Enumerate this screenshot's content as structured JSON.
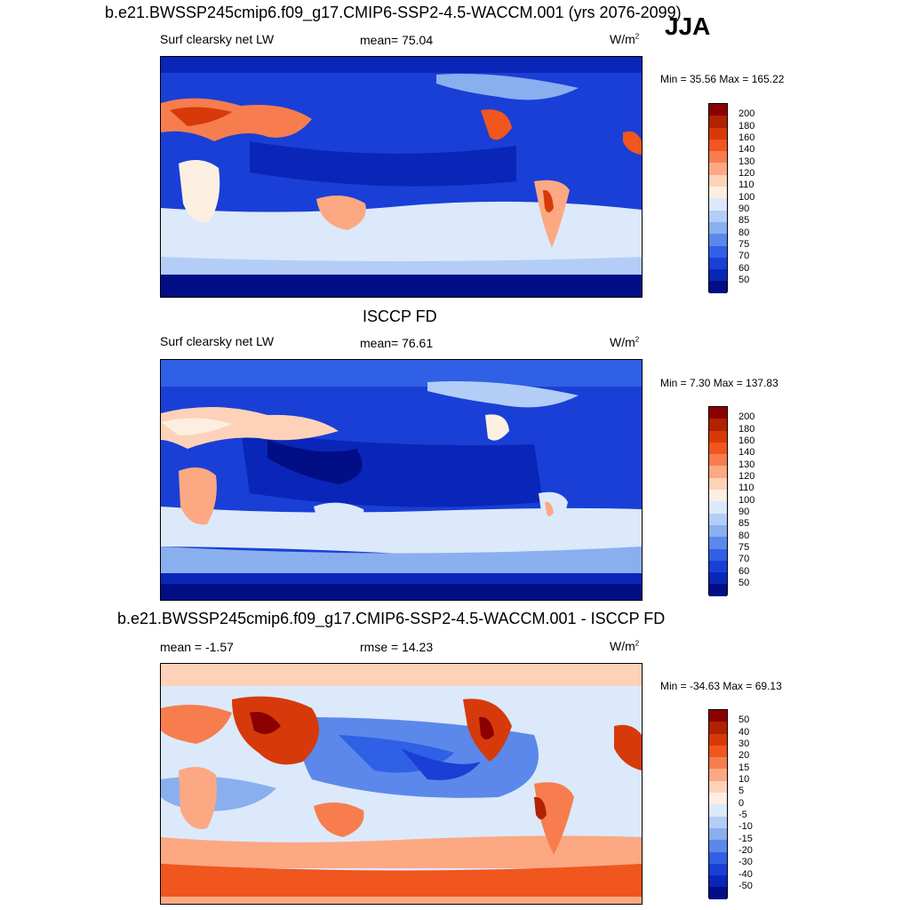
{
  "season": "JJA",
  "panels": [
    {
      "title": "b.e21.BWSSP245cmip6.f09_g17.CMIP6-SSP2-4.5-WACCM.001 (yrs 2076-2099)",
      "left_label": "Surf clearsky net LW",
      "center_label": "mean=  75.04",
      "units": "W/m",
      "units_sup": "2",
      "minmax": "Min =  35.56 Max = 165.22"
    },
    {
      "title": "ISCCP FD",
      "left_label": "Surf clearsky net LW",
      "center_label": "mean=  76.61",
      "units": "W/m",
      "units_sup": "2",
      "minmax": "Min =   7.30 Max = 137.83"
    },
    {
      "title": "b.e21.BWSSP245cmip6.f09_g17.CMIP6-SSP2-4.5-WACCM.001 - ISCCP FD",
      "left_label": "mean =  -1.57",
      "center_label": "rmse =  14.23",
      "units": "W/m",
      "units_sup": "2",
      "minmax": "Min = -34.63 Max =  69.13"
    }
  ],
  "colorbars": [
    {
      "levels": [
        "200",
        "180",
        "160",
        "140",
        "130",
        "120",
        "110",
        "100",
        "90",
        "85",
        "80",
        "75",
        "70",
        "60",
        "50"
      ],
      "colors": [
        "#8b0000",
        "#b22200",
        "#d63a0a",
        "#f0561e",
        "#f77d4e",
        "#fca883",
        "#fdd2b8",
        "#fcefe2",
        "#dce9fb",
        "#b3cdf7",
        "#8aafef",
        "#5b88ea",
        "#3060e6",
        "#1a3fd6",
        "#0a26b8",
        "#020e86"
      ]
    },
    {
      "levels": [
        "200",
        "180",
        "160",
        "140",
        "130",
        "120",
        "110",
        "100",
        "90",
        "85",
        "80",
        "75",
        "70",
        "60",
        "50"
      ],
      "colors": [
        "#8b0000",
        "#b22200",
        "#d63a0a",
        "#f0561e",
        "#f77d4e",
        "#fca883",
        "#fdd2b8",
        "#fcefe2",
        "#dce9fb",
        "#b3cdf7",
        "#8aafef",
        "#5b88ea",
        "#3060e6",
        "#1a3fd6",
        "#0a26b8",
        "#020e86"
      ]
    },
    {
      "levels": [
        "50",
        "40",
        "30",
        "20",
        "15",
        "10",
        "5",
        "0",
        "-5",
        "-10",
        "-15",
        "-20",
        "-30",
        "-40",
        "-50"
      ],
      "colors": [
        "#8b0000",
        "#b22200",
        "#d63a0a",
        "#f0561e",
        "#f77d4e",
        "#fca883",
        "#fdd2b8",
        "#fcefe2",
        "#dce9fb",
        "#b3cdf7",
        "#8aafef",
        "#5b88ea",
        "#3060e6",
        "#1a3fd6",
        "#0a26b8",
        "#020e86"
      ]
    }
  ],
  "chart_data": [
    {
      "type": "heatmap",
      "title": "b.e21.BWSSP245cmip6.f09_g17.CMIP6-SSP2-4.5-WACCM.001 (yrs 2076-2099)",
      "variable": "Surf clearsky net LW",
      "units": "W/m2",
      "mean": 75.04,
      "min": 35.56,
      "max": 165.22,
      "contour_levels": [
        50,
        60,
        70,
        75,
        80,
        85,
        90,
        100,
        110,
        120,
        130,
        140,
        160,
        180,
        200
      ]
    },
    {
      "type": "heatmap",
      "title": "ISCCP FD",
      "variable": "Surf clearsky net LW",
      "units": "W/m2",
      "mean": 76.61,
      "min": 7.3,
      "max": 137.83,
      "contour_levels": [
        50,
        60,
        70,
        75,
        80,
        85,
        90,
        100,
        110,
        120,
        130,
        140,
        160,
        180,
        200
      ]
    },
    {
      "type": "heatmap",
      "title": "b.e21.BWSSP245cmip6.f09_g17.CMIP6-SSP2-4.5-WACCM.001 - ISCCP FD",
      "variable": "difference",
      "units": "W/m2",
      "mean": -1.57,
      "rmse": 14.23,
      "min": -34.63,
      "max": 69.13,
      "contour_levels": [
        -50,
        -40,
        -30,
        -20,
        -15,
        -10,
        -5,
        0,
        5,
        10,
        15,
        20,
        30,
        40,
        50
      ]
    }
  ]
}
